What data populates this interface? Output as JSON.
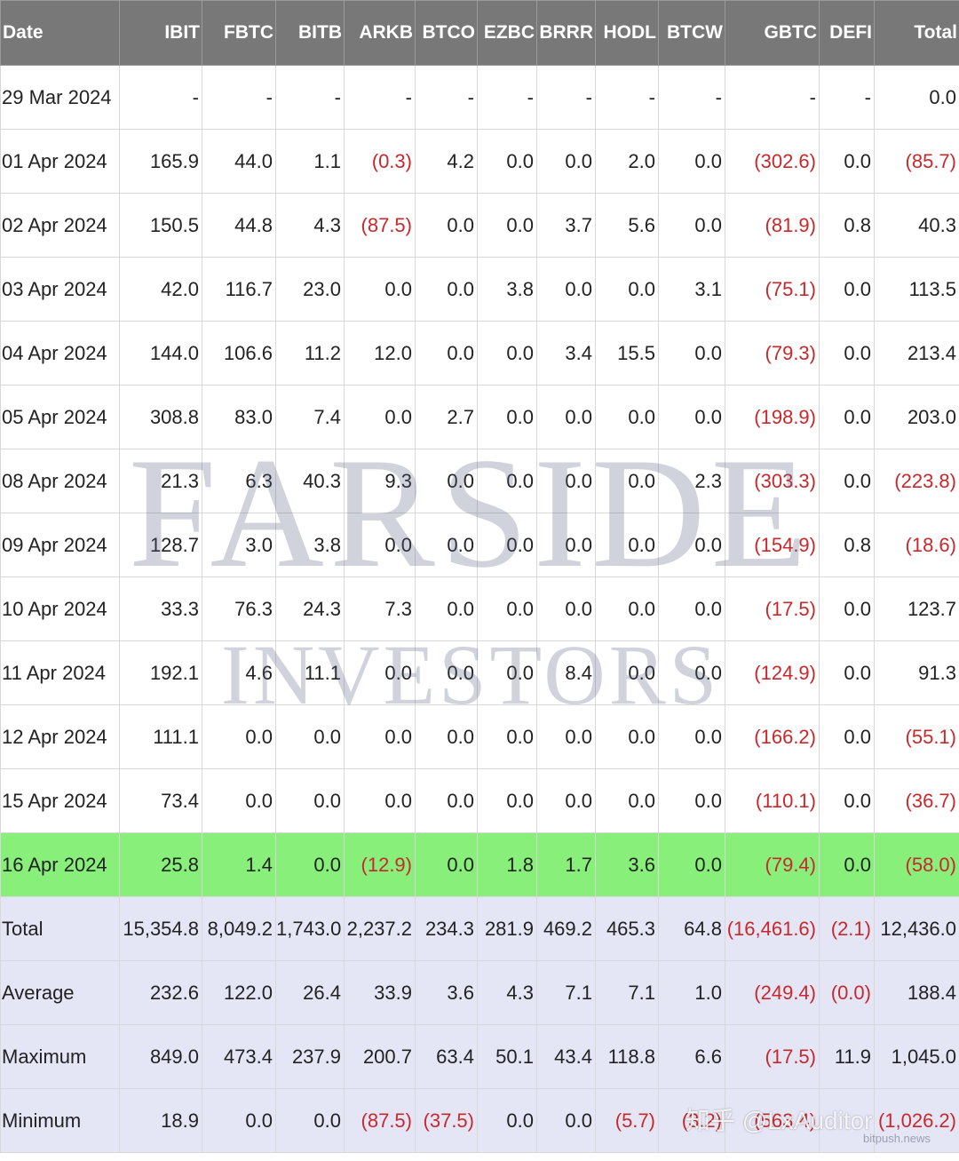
{
  "table": {
    "headers": [
      "Date",
      "IBIT",
      "FBTC",
      "BITB",
      "ARKB",
      "BTCO",
      "EZBC",
      "BRRR",
      "HODL",
      "BTCW",
      "GBTC",
      "DEFI",
      "Total"
    ],
    "rows": [
      {
        "kind": "daily",
        "cells": [
          "29 Mar 2024",
          "-",
          "-",
          "-",
          "-",
          "-",
          "-",
          "-",
          "-",
          "-",
          "-",
          "-",
          "0.0"
        ]
      },
      {
        "kind": "daily",
        "cells": [
          "01 Apr 2024",
          "165.9",
          "44.0",
          "1.1",
          "(0.3)",
          "4.2",
          "0.0",
          "0.0",
          "2.0",
          "0.0",
          "(302.6)",
          "0.0",
          "(85.7)"
        ]
      },
      {
        "kind": "daily",
        "cells": [
          "02 Apr 2024",
          "150.5",
          "44.8",
          "4.3",
          "(87.5)",
          "0.0",
          "0.0",
          "3.7",
          "5.6",
          "0.0",
          "(81.9)",
          "0.8",
          "40.3"
        ]
      },
      {
        "kind": "daily",
        "cells": [
          "03 Apr 2024",
          "42.0",
          "116.7",
          "23.0",
          "0.0",
          "0.0",
          "3.8",
          "0.0",
          "0.0",
          "3.1",
          "(75.1)",
          "0.0",
          "113.5"
        ]
      },
      {
        "kind": "daily",
        "cells": [
          "04 Apr 2024",
          "144.0",
          "106.6",
          "11.2",
          "12.0",
          "0.0",
          "0.0",
          "3.4",
          "15.5",
          "0.0",
          "(79.3)",
          "0.0",
          "213.4"
        ]
      },
      {
        "kind": "daily",
        "cells": [
          "05 Apr 2024",
          "308.8",
          "83.0",
          "7.4",
          "0.0",
          "2.7",
          "0.0",
          "0.0",
          "0.0",
          "0.0",
          "(198.9)",
          "0.0",
          "203.0"
        ]
      },
      {
        "kind": "daily",
        "cells": [
          "08 Apr 2024",
          "21.3",
          "6.3",
          "40.3",
          "9.3",
          "0.0",
          "0.0",
          "0.0",
          "0.0",
          "2.3",
          "(303.3)",
          "0.0",
          "(223.8)"
        ]
      },
      {
        "kind": "daily",
        "cells": [
          "09 Apr 2024",
          "128.7",
          "3.0",
          "3.8",
          "0.0",
          "0.0",
          "0.0",
          "0.0",
          "0.0",
          "0.0",
          "(154.9)",
          "0.8",
          "(18.6)"
        ]
      },
      {
        "kind": "daily",
        "cells": [
          "10 Apr 2024",
          "33.3",
          "76.3",
          "24.3",
          "7.3",
          "0.0",
          "0.0",
          "0.0",
          "0.0",
          "0.0",
          "(17.5)",
          "0.0",
          "123.7"
        ]
      },
      {
        "kind": "daily",
        "cells": [
          "11 Apr 2024",
          "192.1",
          "4.6",
          "11.1",
          "0.0",
          "0.0",
          "0.0",
          "8.4",
          "0.0",
          "0.0",
          "(124.9)",
          "0.0",
          "91.3"
        ]
      },
      {
        "kind": "daily",
        "cells": [
          "12 Apr 2024",
          "111.1",
          "0.0",
          "0.0",
          "0.0",
          "0.0",
          "0.0",
          "0.0",
          "0.0",
          "0.0",
          "(166.2)",
          "0.0",
          "(55.1)"
        ]
      },
      {
        "kind": "daily",
        "cells": [
          "15 Apr 2024",
          "73.4",
          "0.0",
          "0.0",
          "0.0",
          "0.0",
          "0.0",
          "0.0",
          "0.0",
          "0.0",
          "(110.1)",
          "0.0",
          "(36.7)"
        ]
      },
      {
        "kind": "highlight",
        "cells": [
          "16 Apr 2024",
          "25.8",
          "1.4",
          "0.0",
          "(12.9)",
          "0.0",
          "1.8",
          "1.7",
          "3.6",
          "0.0",
          "(79.4)",
          "0.0",
          "(58.0)"
        ]
      },
      {
        "kind": "summary",
        "cells": [
          "Total",
          "15,354.8",
          "8,049.2",
          "1,743.0",
          "2,237.2",
          "234.3",
          "281.9",
          "469.2",
          "465.3",
          "64.8",
          "(16,461.6)",
          "(2.1)",
          "12,436.0"
        ]
      },
      {
        "kind": "summary",
        "cells": [
          "Average",
          "232.6",
          "122.0",
          "26.4",
          "33.9",
          "3.6",
          "4.3",
          "7.1",
          "7.1",
          "1.0",
          "(249.4)",
          "(0.0)",
          "188.4"
        ]
      },
      {
        "kind": "summary",
        "cells": [
          "Maximum",
          "849.0",
          "473.4",
          "237.9",
          "200.7",
          "63.4",
          "50.1",
          "43.4",
          "118.8",
          "6.6",
          "(17.5)",
          "11.9",
          "1,045.0"
        ]
      },
      {
        "kind": "summary",
        "cells": [
          "Minimum",
          "18.9",
          "0.0",
          "0.0",
          "(87.5)",
          "(37.5)",
          "0.0",
          "0.0",
          "(5.7)",
          "(3.2)",
          "(563.4)",
          "",
          "(1,026.2)"
        ]
      }
    ]
  },
  "watermark": {
    "line1": "FARSIDE",
    "line2": "INVESTORS"
  },
  "stamp": {
    "main": "知乎 @LxAuditor",
    "sub": "bitpush.news"
  },
  "colors": {
    "header_bg": "#787878",
    "negative": "#c8282c",
    "highlight_row": "#88f07a",
    "summary_rows": "#e4e6f6"
  }
}
